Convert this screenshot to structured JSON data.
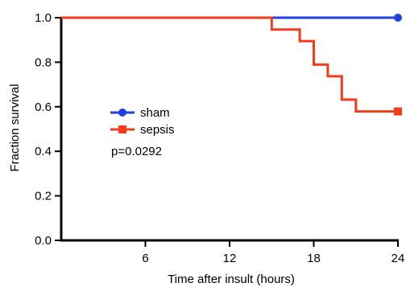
{
  "chart_data": {
    "type": "line",
    "subtype": "kaplan-meier",
    "title": "",
    "xlabel": "Time after insult (hours)",
    "ylabel": "Fraction survival",
    "xlim": [
      0,
      24
    ],
    "ylim": [
      0.0,
      1.0
    ],
    "x_ticks": [
      6,
      12,
      18,
      24
    ],
    "y_ticks": [
      0.0,
      0.2,
      0.4,
      0.6,
      0.8,
      1.0
    ],
    "y_tick_labels": [
      "0.0",
      "0.2",
      "0.4",
      "0.6",
      "0.8",
      "1.0"
    ],
    "grid": false,
    "legend_position": "center-left",
    "series": [
      {
        "name": "sham",
        "color": "#1f3fe0",
        "marker": "circle",
        "points": [
          [
            0,
            1.0
          ],
          [
            24,
            1.0
          ]
        ]
      },
      {
        "name": "sepsis",
        "color": "#f23c1c",
        "marker": "square",
        "points": [
          [
            0,
            1.0
          ],
          [
            15,
            1.0
          ],
          [
            15,
            0.947
          ],
          [
            17,
            0.947
          ],
          [
            17,
            0.895
          ],
          [
            18,
            0.895
          ],
          [
            18,
            0.789
          ],
          [
            19,
            0.789
          ],
          [
            19,
            0.737
          ],
          [
            20,
            0.737
          ],
          [
            20,
            0.632
          ],
          [
            21,
            0.632
          ],
          [
            21,
            0.579
          ],
          [
            24,
            0.579
          ]
        ]
      }
    ],
    "annotations": [
      "p=0.0292"
    ]
  }
}
